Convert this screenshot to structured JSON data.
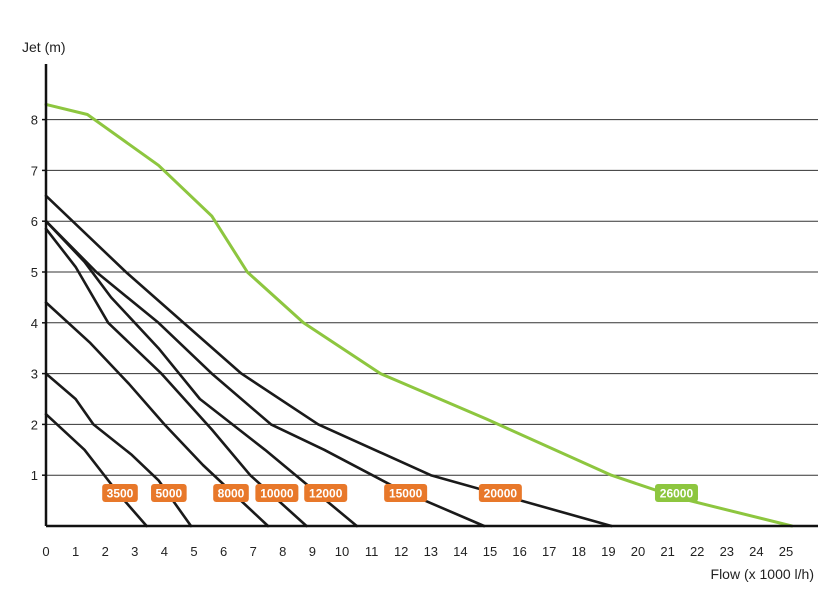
{
  "chart_data": {
    "type": "line",
    "title": "",
    "ylabel": "Jet (m)",
    "xlabel": "Flow (x 1000 l/h)",
    "xlim": [
      0,
      26
    ],
    "ylim": [
      0,
      9
    ],
    "x_ticks": [
      "0",
      "1",
      "2",
      "3",
      "4",
      "5",
      "6",
      "7",
      "8",
      "9",
      "10",
      "11",
      "12",
      "13",
      "14",
      "15",
      "16",
      "17",
      "18",
      "19",
      "20",
      "21",
      "22",
      "23",
      "24",
      "25"
    ],
    "y_ticks": [
      "1",
      "2",
      "3",
      "4",
      "5",
      "6",
      "7",
      "8"
    ],
    "grid": "horizontal",
    "colors": {
      "default": "#1a1a1a",
      "highlight": "#8dc63f",
      "badge": "#e8782a"
    },
    "series": [
      {
        "name": "3500",
        "color": "#1a1a1a",
        "label_x": 2.5,
        "label_color": "#e8782a",
        "points": [
          [
            0,
            2.2
          ],
          [
            1.3,
            1.5
          ],
          [
            2.5,
            0.6
          ],
          [
            3.4,
            0
          ]
        ]
      },
      {
        "name": "5000",
        "color": "#1a1a1a",
        "label_x": 4.15,
        "label_color": "#e8782a",
        "points": [
          [
            0,
            3.0
          ],
          [
            1,
            2.5
          ],
          [
            1.6,
            2.0
          ],
          [
            2.9,
            1.4
          ],
          [
            3.8,
            0.9
          ],
          [
            4.9,
            0
          ]
        ]
      },
      {
        "name": "8000",
        "color": "#1a1a1a",
        "label_x": 6.25,
        "label_color": "#e8782a",
        "points": [
          [
            0,
            4.4
          ],
          [
            1.5,
            3.6
          ],
          [
            2.8,
            2.8
          ],
          [
            4,
            2.0
          ],
          [
            5.3,
            1.2
          ],
          [
            7.5,
            0
          ]
        ]
      },
      {
        "name": "10000",
        "color": "#1a1a1a",
        "label_x": 7.8,
        "label_color": "#e8782a",
        "points": [
          [
            0,
            5.85
          ],
          [
            1,
            5.1
          ],
          [
            2.1,
            4.0
          ],
          [
            3.9,
            3.0
          ],
          [
            5.6,
            1.9
          ],
          [
            6.9,
            1.0
          ],
          [
            8.8,
            0
          ]
        ]
      },
      {
        "name": "12000",
        "color": "#1a1a1a",
        "label_x": 9.45,
        "label_color": "#e8782a",
        "points": [
          [
            0,
            6.0
          ],
          [
            1.3,
            5.2
          ],
          [
            2.2,
            4.5
          ],
          [
            3.8,
            3.5
          ],
          [
            5.2,
            2.5
          ],
          [
            7.4,
            1.5
          ],
          [
            10.5,
            0
          ]
        ]
      },
      {
        "name": "15000",
        "color": "#1a1a1a",
        "label_x": 12.15,
        "label_color": "#e8782a",
        "points": [
          [
            0,
            6.0
          ],
          [
            1.7,
            5.0
          ],
          [
            3.8,
            4.0
          ],
          [
            5.6,
            3.0
          ],
          [
            7.6,
            2.0
          ],
          [
            9.4,
            1.5
          ],
          [
            12,
            0.7
          ],
          [
            14.8,
            0
          ]
        ]
      },
      {
        "name": "20000",
        "color": "#1a1a1a",
        "label_x": 15.35,
        "label_color": "#e8782a",
        "points": [
          [
            0,
            6.5
          ],
          [
            2.7,
            5.0
          ],
          [
            6.6,
            3.0
          ],
          [
            9.2,
            2.0
          ],
          [
            13,
            1.0
          ],
          [
            19.1,
            0
          ]
        ]
      },
      {
        "name": "26000",
        "color": "#8dc63f",
        "label_x": 21.3,
        "label_color": "#8dc63f",
        "points": [
          [
            0,
            8.3
          ],
          [
            1.4,
            8.1
          ],
          [
            3.8,
            7.1
          ],
          [
            5.6,
            6.1
          ],
          [
            6.8,
            5.0
          ],
          [
            8.7,
            4.0
          ],
          [
            11.3,
            3.0
          ],
          [
            14.9,
            2.1
          ],
          [
            19.1,
            1.0
          ],
          [
            21.4,
            0.55
          ],
          [
            25.2,
            0
          ]
        ]
      }
    ]
  }
}
